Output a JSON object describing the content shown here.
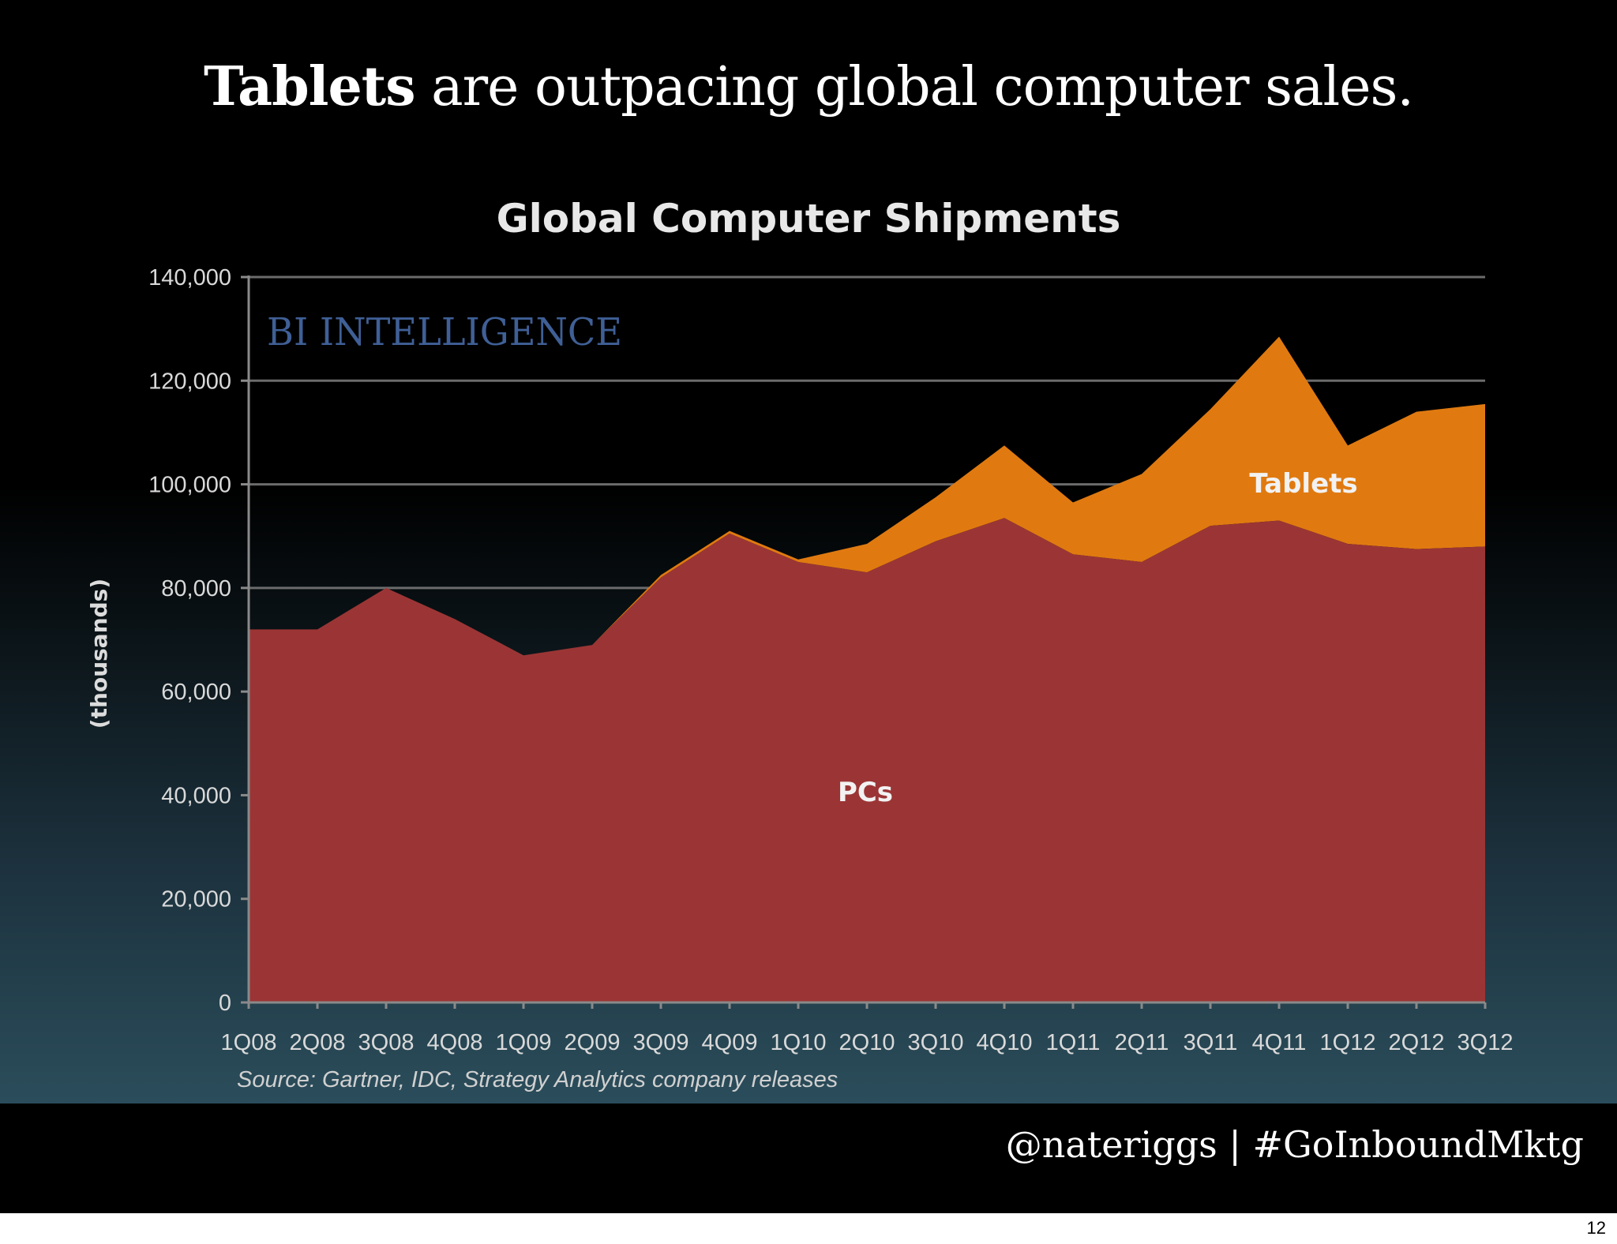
{
  "headline": {
    "bold": "Tablets",
    "rest": " are outpacing global computer sales."
  },
  "footer": {
    "handle": "@nateriggs | #GoInboundMktg",
    "page_number": "12"
  },
  "chart_data": {
    "type": "area",
    "stacked": true,
    "title": "Global Computer Shipments",
    "ylabel": "(thousands)",
    "xlabel": "",
    "ylim": [
      0,
      140000
    ],
    "yticks": [
      0,
      20000,
      40000,
      60000,
      80000,
      100000,
      120000,
      140000
    ],
    "ytick_labels": [
      "0",
      "20,000",
      "40,000",
      "60,000",
      "80,000",
      "100,000",
      "120,000",
      "140,000"
    ],
    "grid": true,
    "categories": [
      "1Q08",
      "2Q08",
      "3Q08",
      "4Q08",
      "1Q09",
      "2Q09",
      "3Q09",
      "4Q09",
      "1Q10",
      "2Q10",
      "3Q10",
      "4Q10",
      "1Q11",
      "2Q11",
      "3Q11",
      "4Q11",
      "1Q12",
      "2Q12",
      "3Q12"
    ],
    "series": [
      {
        "name": "PCs",
        "color": "#9b3535",
        "values": [
          72000,
          72000,
          80000,
          74000,
          67000,
          69000,
          82000,
          90500,
          85000,
          83000,
          89000,
          93500,
          86500,
          85000,
          92000,
          93000,
          88500,
          87500,
          88000
        ]
      },
      {
        "name": "Tablets",
        "color": "#e07a10",
        "values": [
          0,
          0,
          0,
          0,
          0,
          0,
          500,
          500,
          500,
          5500,
          8500,
          14000,
          10000,
          17000,
          22500,
          35500,
          19000,
          26500,
          27500
        ]
      }
    ],
    "watermark": "BI INTELLIGENCE",
    "source": "Source: Gartner, IDC, Strategy Analytics company releases"
  }
}
